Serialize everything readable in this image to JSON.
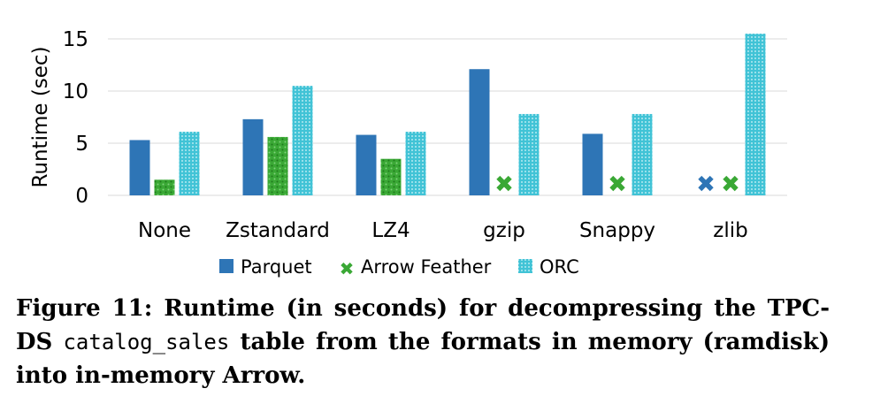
{
  "chart_data": {
    "type": "bar",
    "categories": [
      "None",
      "Zstandard",
      "LZ4",
      "gzip",
      "Snappy",
      "zlib"
    ],
    "series": [
      {
        "name": "Parquet",
        "values": [
          5.3,
          7.3,
          5.8,
          12.1,
          5.9,
          null
        ],
        "color": "#2e75b6"
      },
      {
        "name": "Arrow Feather",
        "values": [
          1.5,
          5.6,
          3.5,
          null,
          null,
          null
        ],
        "color": "#3aa835"
      },
      {
        "name": "ORC",
        "values": [
          6.1,
          10.5,
          6.1,
          7.8,
          7.8,
          15.5
        ],
        "color": "#41c3d6"
      }
    ],
    "unsupported_marker": "✖",
    "ylabel": "Runtime (sec)",
    "xlabel": "",
    "ylim": [
      0,
      15
    ],
    "yticks": [
      0,
      5,
      10,
      15
    ],
    "grid": true,
    "legend_position": "bottom"
  },
  "caption": {
    "lead": "Figure 11: Runtime (in seconds) for decompressing the TPC-DS ",
    "code": "catalog_sales",
    "tail": " table from the formats in memory (ramdisk) into in-memory Arrow."
  }
}
